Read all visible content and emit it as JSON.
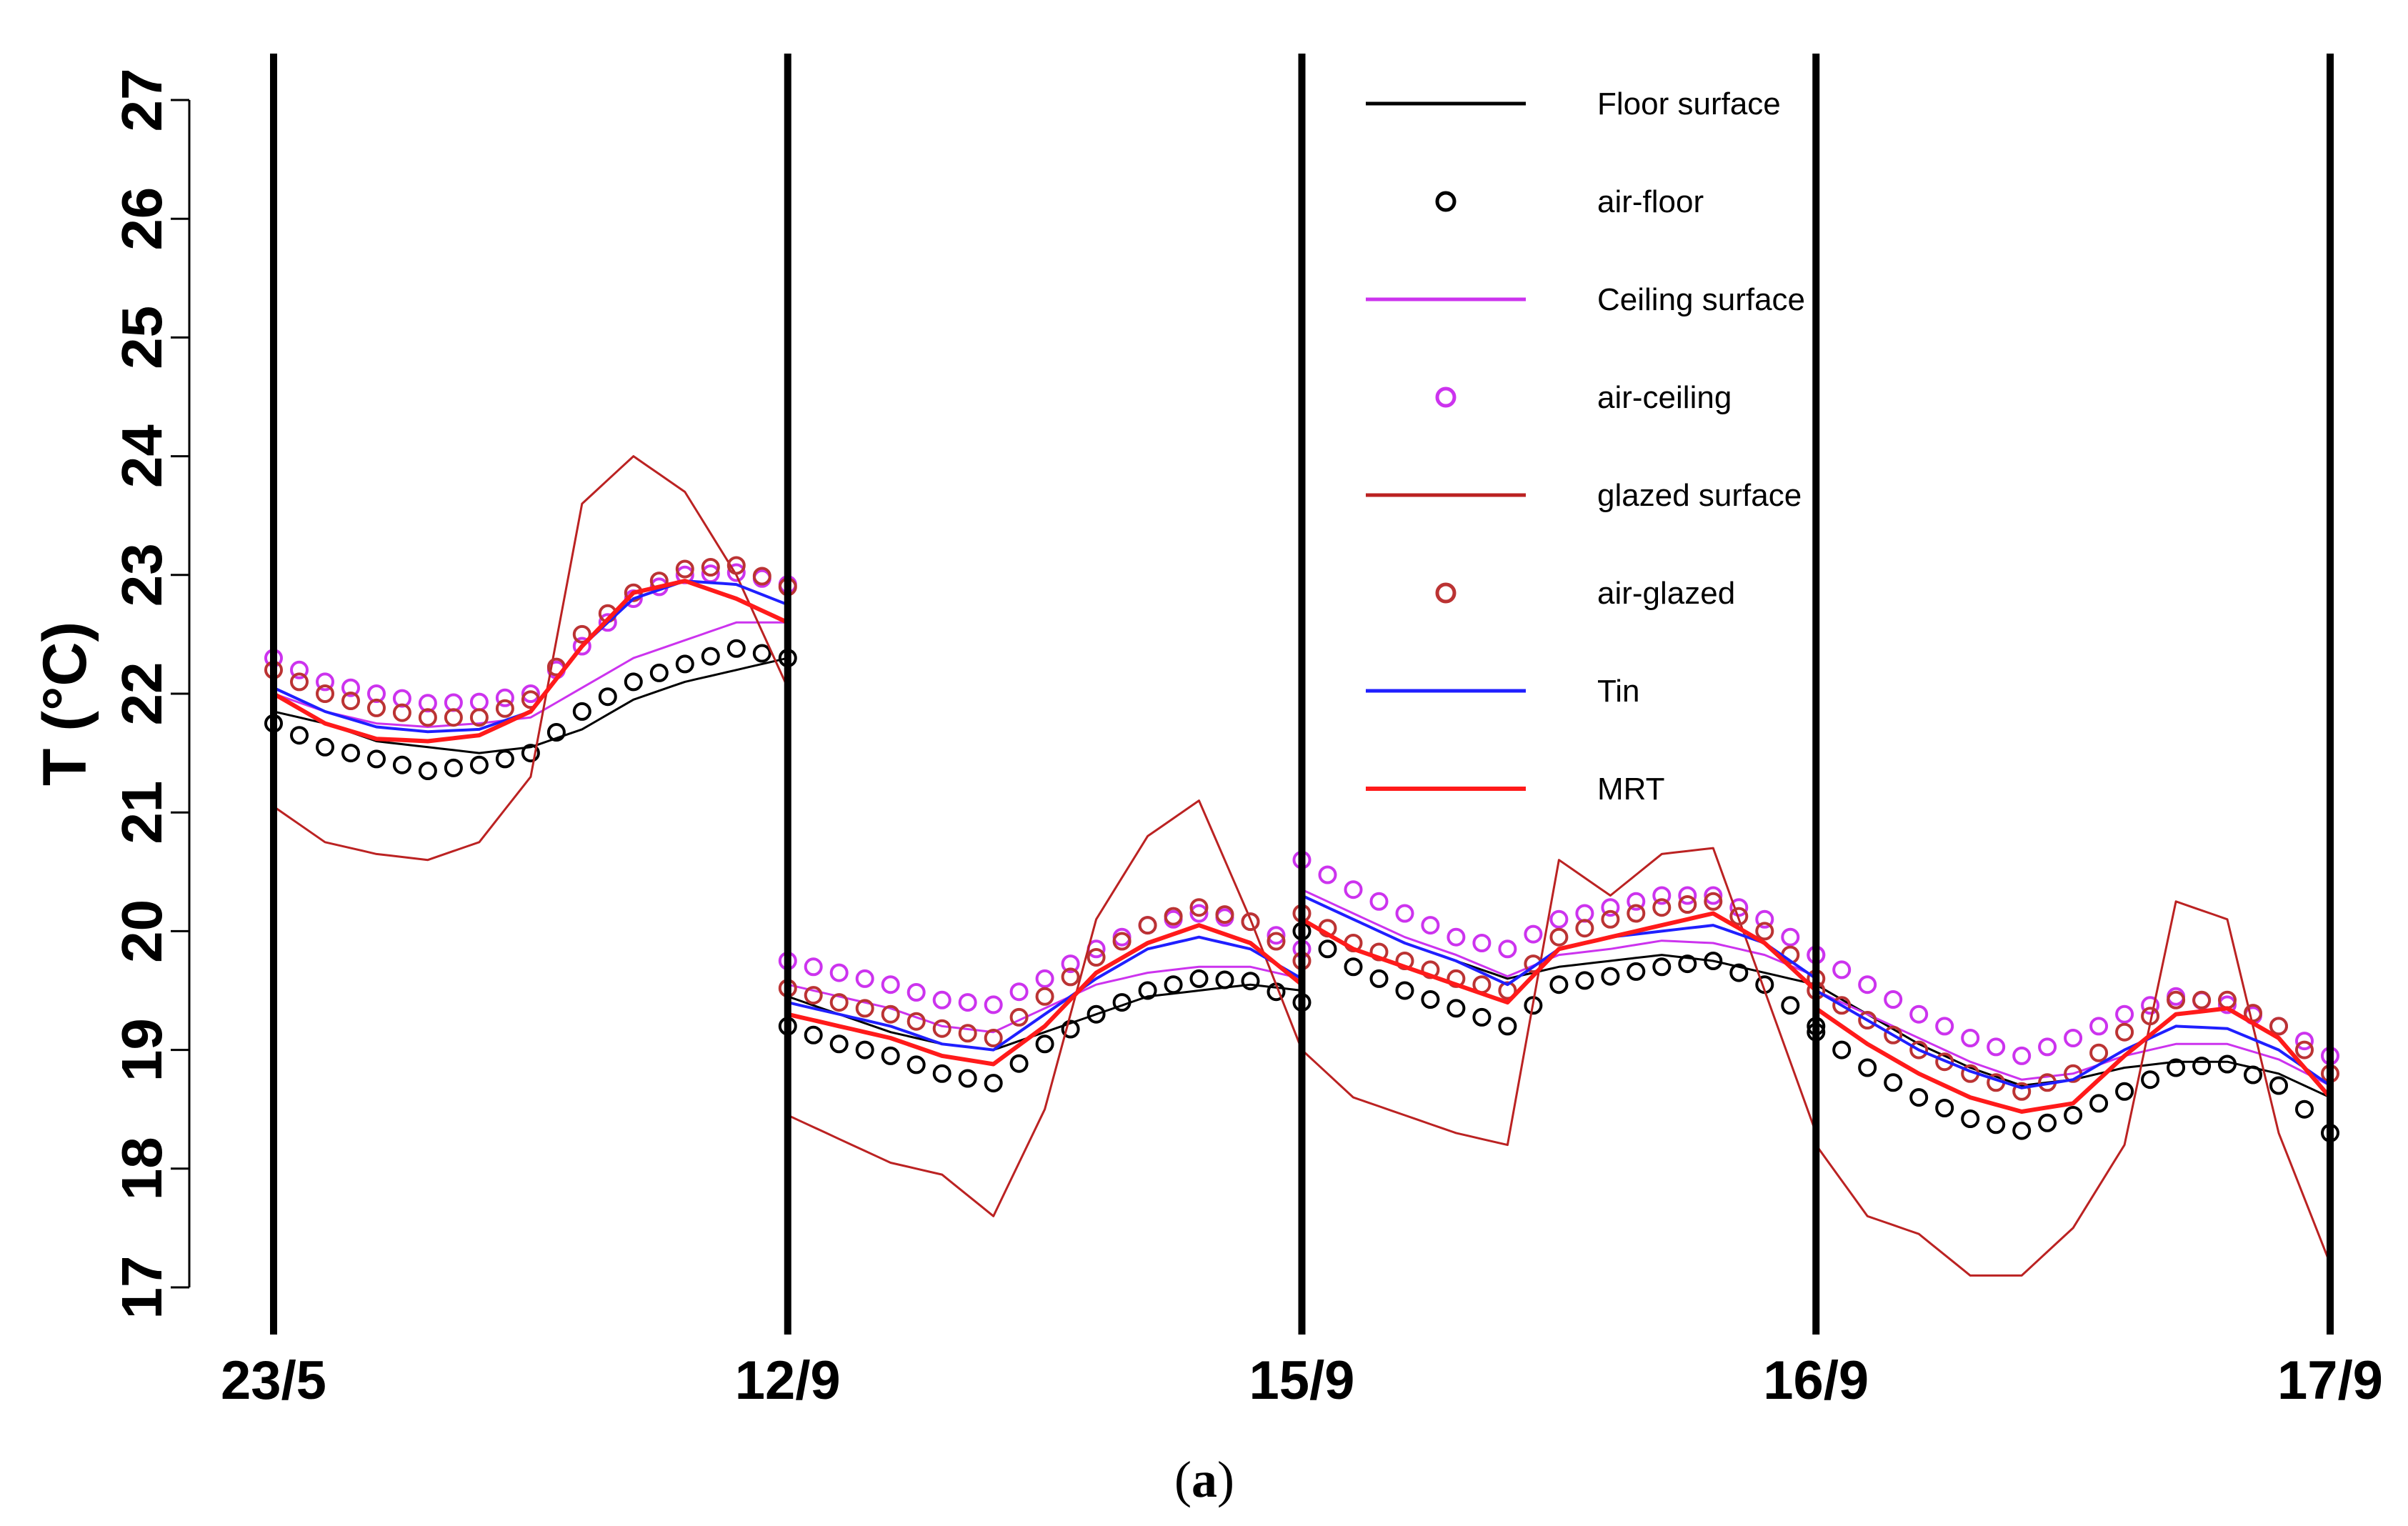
{
  "chart_data": {
    "type": "line",
    "caption_open": "(",
    "caption_label": "a",
    "caption_close": ")",
    "ylabel": "T (°C)",
    "xlabel": "",
    "ylim": [
      17,
      27
    ],
    "yticks": [
      17,
      18,
      19,
      20,
      21,
      22,
      23,
      24,
      25,
      26,
      27
    ],
    "xlim": [
      0,
      4
    ],
    "day_boundaries": [
      0,
      1,
      2,
      3,
      4
    ],
    "xtick_labels": [
      "23/5",
      "12/9",
      "15/9",
      "16/9",
      "17/9"
    ],
    "grid": false,
    "legend_position": "top-right",
    "colors": {
      "floor": "#000000",
      "ceiling": "#cc33ee",
      "glazed": "#bb2222",
      "tin": "#1f1fff",
      "mrt": "#ff1a1a"
    },
    "series": [
      {
        "name": "Floor surface",
        "style": "line",
        "color": "#000000",
        "width": 3,
        "day_values": [
          [
            21.85,
            21.75,
            21.6,
            21.55,
            21.5,
            21.55,
            21.7,
            21.95,
            22.1,
            22.2,
            22.3
          ],
          [
            19.45,
            19.3,
            19.15,
            19.05,
            19.0,
            19.15,
            19.3,
            19.45,
            19.5,
            19.55,
            19.5
          ],
          [
            20.3,
            20.1,
            19.9,
            19.75,
            19.6,
            19.7,
            19.75,
            19.8,
            19.75,
            19.65,
            19.55
          ],
          [
            19.55,
            19.3,
            19.05,
            18.85,
            18.7,
            18.75,
            18.85,
            18.9,
            18.9,
            18.8,
            18.6
          ]
        ]
      },
      {
        "name": "air-floor",
        "style": "circle",
        "color": "#000000",
        "day_values": [
          [
            21.75,
            21.55,
            21.45,
            21.35,
            21.4,
            21.5,
            21.85,
            22.1,
            22.25,
            22.38,
            22.3
          ],
          [
            19.2,
            19.05,
            18.95,
            18.8,
            18.72,
            19.05,
            19.3,
            19.5,
            19.6,
            19.58,
            19.4
          ],
          [
            20.0,
            19.7,
            19.5,
            19.35,
            19.2,
            19.55,
            19.62,
            19.7,
            19.75,
            19.55,
            19.2
          ],
          [
            19.15,
            18.85,
            18.6,
            18.42,
            18.32,
            18.45,
            18.65,
            18.85,
            18.88,
            18.7,
            18.3
          ]
        ]
      },
      {
        "name": "Ceiling surface",
        "style": "line",
        "color": "#cc33ee",
        "width": 3,
        "day_values": [
          [
            22.0,
            21.85,
            21.75,
            21.72,
            21.75,
            21.8,
            22.05,
            22.3,
            22.45,
            22.6,
            22.6
          ],
          [
            19.55,
            19.45,
            19.35,
            19.2,
            19.15,
            19.35,
            19.55,
            19.65,
            19.7,
            19.7,
            19.6
          ],
          [
            20.35,
            20.15,
            19.95,
            19.8,
            19.62,
            19.8,
            19.85,
            19.92,
            19.9,
            19.8,
            19.62
          ],
          [
            19.5,
            19.3,
            19.1,
            18.9,
            18.75,
            18.8,
            18.95,
            19.05,
            19.05,
            18.92,
            18.7
          ]
        ]
      },
      {
        "name": "air-ceiling",
        "style": "circle",
        "color": "#cc33ee",
        "day_values": [
          [
            22.3,
            22.1,
            22.0,
            21.92,
            21.93,
            22.0,
            22.4,
            22.8,
            23.0,
            23.02,
            22.92
          ],
          [
            19.75,
            19.65,
            19.55,
            19.42,
            19.38,
            19.6,
            19.85,
            20.05,
            20.15,
            20.08,
            19.85
          ],
          [
            20.6,
            20.35,
            20.15,
            19.95,
            19.85,
            20.1,
            20.2,
            20.3,
            20.3,
            20.1,
            19.8
          ],
          [
            19.8,
            19.55,
            19.3,
            19.1,
            18.95,
            19.1,
            19.3,
            19.45,
            19.38,
            19.2,
            18.95
          ]
        ]
      },
      {
        "name": "glazed surface",
        "style": "line",
        "color": "#bb2222",
        "width": 3,
        "day_values": [
          [
            21.05,
            20.75,
            20.65,
            20.6,
            20.75,
            21.3,
            23.6,
            24.0,
            23.7,
            23.0,
            22.05
          ],
          [
            18.45,
            18.25,
            18.05,
            17.95,
            17.6,
            18.5,
            20.1,
            20.8,
            21.1,
            20.1,
            19.0
          ],
          [
            19.0,
            18.6,
            18.45,
            18.3,
            18.2,
            20.6,
            20.3,
            20.65,
            20.7,
            19.5,
            18.3
          ],
          [
            18.2,
            17.6,
            17.45,
            17.1,
            17.1,
            17.5,
            18.2,
            20.25,
            20.1,
            18.3,
            17.2
          ]
        ]
      },
      {
        "name": "air-glazed",
        "style": "circle",
        "color": "#bb3333",
        "day_values": [
          [
            22.2,
            22.0,
            21.88,
            21.8,
            21.8,
            21.95,
            22.5,
            22.85,
            23.05,
            23.08,
            22.9
          ],
          [
            19.52,
            19.4,
            19.3,
            19.18,
            19.1,
            19.45,
            19.78,
            20.05,
            20.2,
            20.08,
            19.75
          ],
          [
            20.15,
            19.9,
            19.75,
            19.6,
            19.5,
            19.95,
            20.1,
            20.2,
            20.25,
            20.0,
            19.6
          ],
          [
            19.5,
            19.25,
            19.0,
            18.8,
            18.65,
            18.8,
            19.15,
            19.42,
            19.42,
            19.2,
            18.8
          ]
        ]
      },
      {
        "name": "Tin",
        "style": "line",
        "color": "#1f1fff",
        "width": 4,
        "day_values": [
          [
            22.05,
            21.85,
            21.72,
            21.68,
            21.7,
            21.85,
            22.4,
            22.8,
            22.95,
            22.92,
            22.75
          ],
          [
            19.4,
            19.3,
            19.2,
            19.05,
            19.0,
            19.3,
            19.6,
            19.85,
            19.95,
            19.85,
            19.6
          ],
          [
            20.3,
            20.1,
            19.9,
            19.75,
            19.55,
            19.85,
            19.95,
            20.0,
            20.05,
            19.9,
            19.6
          ],
          [
            19.5,
            19.25,
            19.0,
            18.82,
            18.68,
            18.75,
            19.0,
            19.2,
            19.18,
            19.0,
            18.7
          ]
        ]
      },
      {
        "name": "MRT",
        "style": "line",
        "color": "#ff1a1a",
        "width": 6,
        "day_values": [
          [
            22.0,
            21.75,
            21.62,
            21.6,
            21.65,
            21.85,
            22.4,
            22.85,
            22.95,
            22.8,
            22.6
          ],
          [
            19.3,
            19.2,
            19.1,
            18.95,
            18.88,
            19.2,
            19.65,
            19.9,
            20.05,
            19.9,
            19.55
          ],
          [
            20.1,
            19.85,
            19.7,
            19.55,
            19.4,
            19.85,
            19.95,
            20.05,
            20.15,
            19.9,
            19.5
          ],
          [
            19.35,
            19.05,
            18.8,
            18.6,
            18.48,
            18.55,
            18.95,
            19.3,
            19.35,
            19.1,
            18.6
          ]
        ]
      }
    ]
  }
}
